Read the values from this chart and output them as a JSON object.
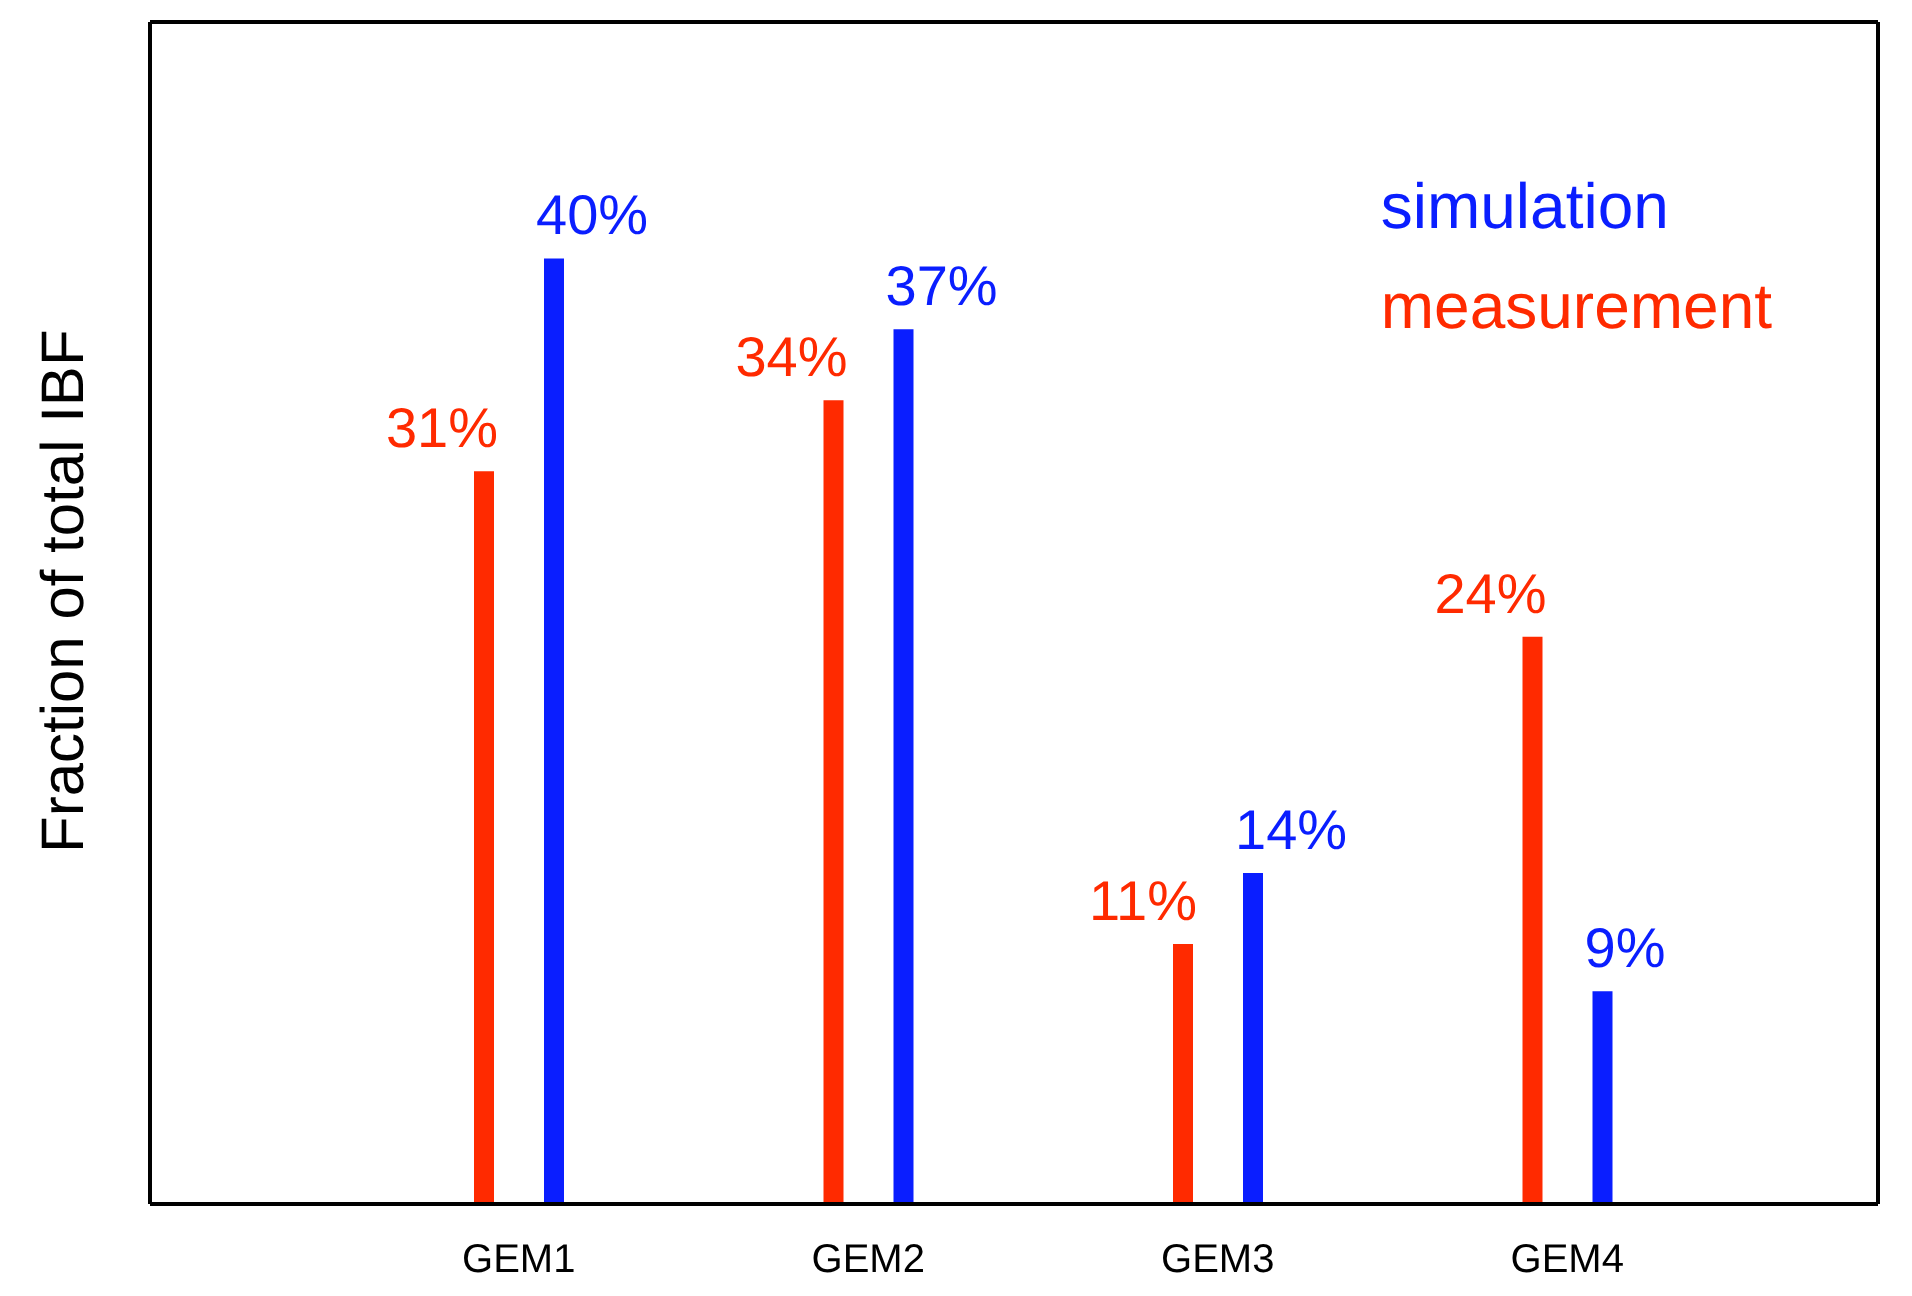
{
  "chart_data": {
    "type": "bar",
    "ylabel": "Fraction of total IBF",
    "categories": [
      "GEM1",
      "GEM2",
      "GEM3",
      "GEM4"
    ],
    "series": [
      {
        "name": "measurement",
        "color": "#ff2a00",
        "values": [
          31,
          34,
          11,
          24
        ],
        "value_labels": [
          "31%",
          "34%",
          "11%",
          "24%"
        ]
      },
      {
        "name": "simulation",
        "color": "#0a1eff",
        "values": [
          40,
          37,
          14,
          9
        ],
        "value_labels": [
          "40%",
          "37%",
          "14%",
          "9%"
        ]
      }
    ],
    "ylim": [
      0,
      50
    ],
    "legend": "top right",
    "tick_labels": "x"
  }
}
